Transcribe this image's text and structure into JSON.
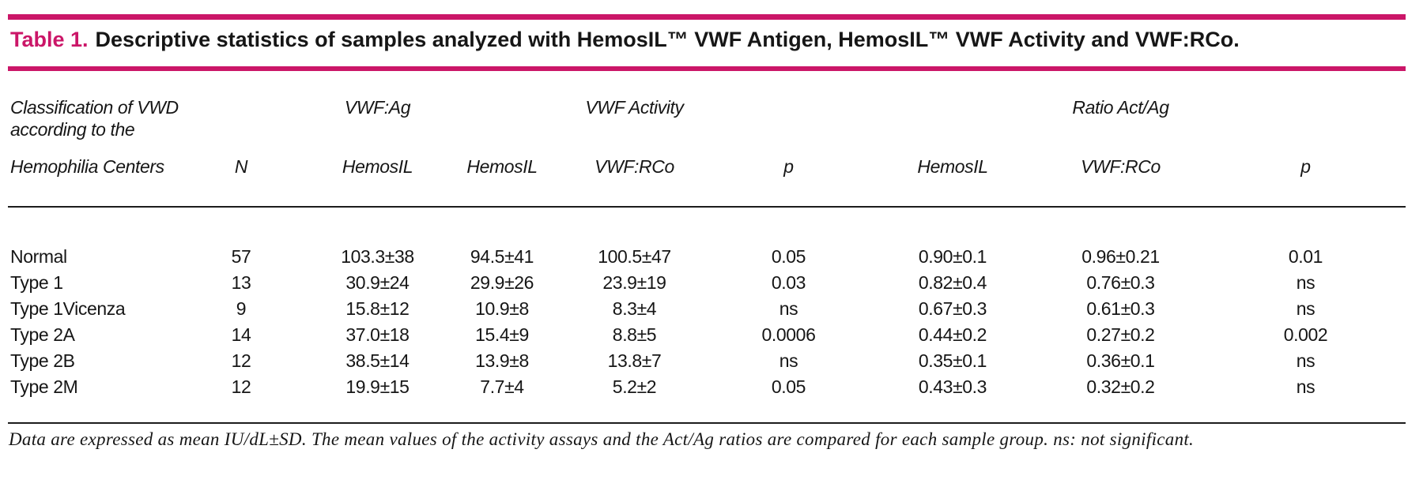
{
  "title": {
    "label": "Table 1.",
    "rest": "Descriptive statistics of samples analyzed with HemosIL™ VWF Antigen, HemosIL™ VWF Activity and VWF:RCo."
  },
  "colors": {
    "accent_pink": "#cb1668",
    "text": "#161616",
    "rule": "#1c1c1c"
  },
  "chart_data": {
    "type": "table",
    "row_header": {
      "line1": "Classification of VWD",
      "line2": "according to the",
      "line3": "Hemophilia Centers"
    },
    "group_headers": {
      "vwf_ag": "VWF:Ag",
      "vwf_activity": "VWF Activity",
      "ratio_act_ag": "Ratio Act/Ag"
    },
    "columns": [
      "N",
      "HemosIL",
      "HemosIL",
      "VWF:RCo",
      "p",
      "HemosIL",
      "VWF:RCo",
      "p"
    ],
    "rows": [
      [
        "Normal",
        "57",
        "103.3±38",
        "94.5±41",
        "100.5±47",
        "0.05",
        "0.90±0.1",
        "0.96±0.21",
        "0.01"
      ],
      [
        "Type 1",
        "13",
        "30.9±24",
        "29.9±26",
        "23.9±19",
        "0.03",
        "0.82±0.4",
        "0.76±0.3",
        "ns"
      ],
      [
        "Type 1Vicenza",
        "9",
        "15.8±12",
        "10.9±8",
        "8.3±4",
        "ns",
        "0.67±0.3",
        "0.61±0.3",
        "ns"
      ],
      [
        "Type 2A",
        "14",
        "37.0±18",
        "15.4±9",
        "8.8±5",
        "0.0006",
        "0.44±0.2",
        "0.27±0.2",
        "0.002"
      ],
      [
        "Type 2B",
        "12",
        "38.5±14",
        "13.9±8",
        "13.8±7",
        "ns",
        "0.35±0.1",
        "0.36±0.1",
        "ns"
      ],
      [
        "Type 2M",
        "12",
        "19.9±15",
        "7.7±4",
        "5.2±2",
        "0.05",
        "0.43±0.3",
        "0.32±0.2",
        "ns"
      ]
    ],
    "footnote": "Data are expressed as mean IU/dL±SD. The mean values of the activity assays and the Act/Ag ratios are compared for each sample group. ns: not significant."
  }
}
